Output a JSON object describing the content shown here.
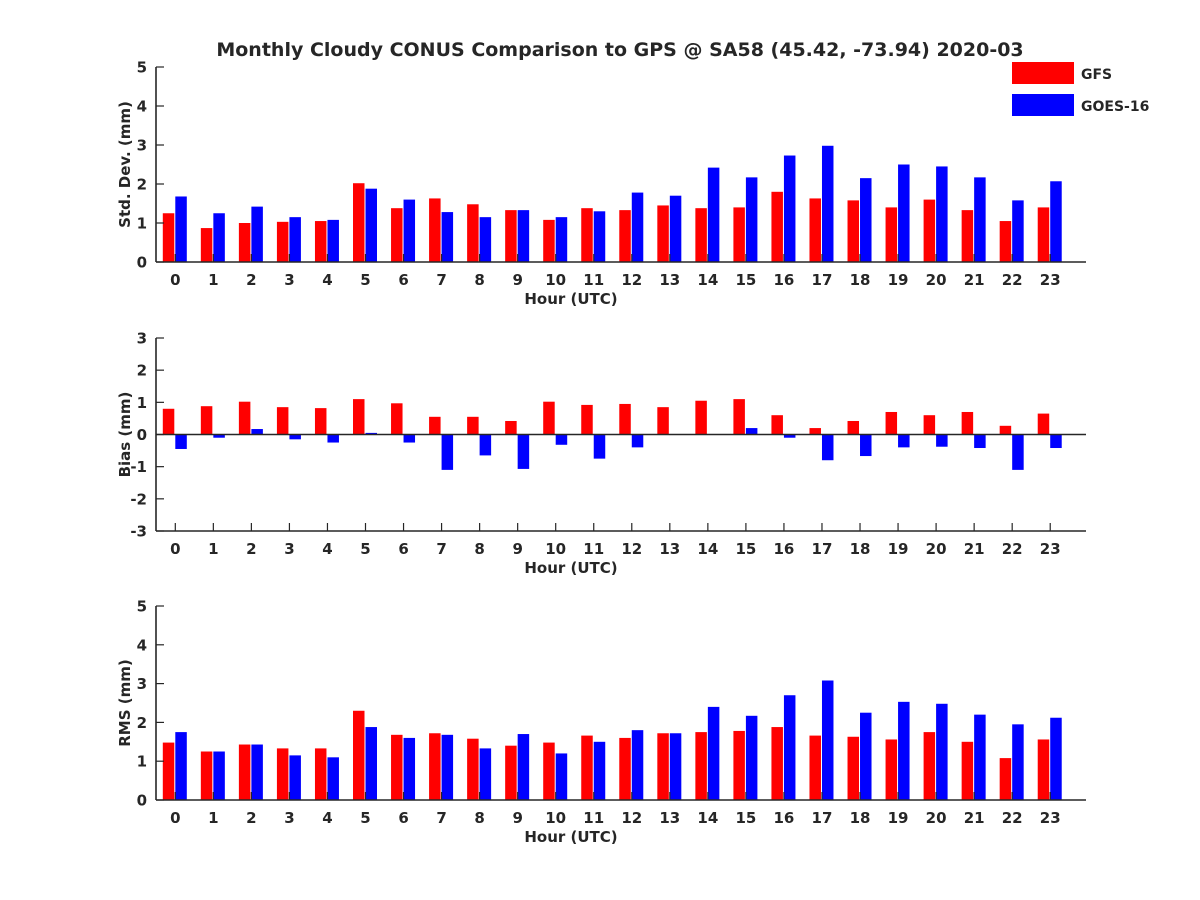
{
  "title": "Monthly Cloudy CONUS Comparison to GPS @ SA58 (45.42, -73.94) 2020-03",
  "colors": {
    "GFS": "#ff0000",
    "GOES-16": "#0000ff",
    "axis": "#262626"
  },
  "legend": [
    {
      "name": "GFS",
      "color": "#ff0000"
    },
    {
      "name": "GOES-16",
      "color": "#0000ff"
    }
  ],
  "chart_data": [
    {
      "type": "bar",
      "title": "Monthly Cloudy CONUS Comparison to GPS @ SA58 (45.42, -73.94) 2020-03",
      "xlabel": "Hour (UTC)",
      "ylabel": "Std. Dev. (mm)",
      "ylim": [
        0,
        5
      ],
      "yticks": [
        0,
        1,
        2,
        3,
        4,
        5
      ],
      "categories": [
        "0",
        "1",
        "2",
        "3",
        "4",
        "5",
        "6",
        "7",
        "8",
        "9",
        "10",
        "11",
        "12",
        "13",
        "14",
        "15",
        "16",
        "17",
        "18",
        "19",
        "20",
        "21",
        "22",
        "23"
      ],
      "series": [
        {
          "name": "GFS",
          "values": [
            1.25,
            0.87,
            1.0,
            1.03,
            1.05,
            2.02,
            1.38,
            1.63,
            1.48,
            1.33,
            1.08,
            1.38,
            1.33,
            1.45,
            1.38,
            1.4,
            1.8,
            1.63,
            1.58,
            1.4,
            1.6,
            1.33,
            1.05,
            1.4
          ]
        },
        {
          "name": "GOES-16",
          "values": [
            1.68,
            1.25,
            1.42,
            1.15,
            1.08,
            1.88,
            1.6,
            1.28,
            1.15,
            1.33,
            1.15,
            1.3,
            1.78,
            1.7,
            2.42,
            2.17,
            2.73,
            2.98,
            2.15,
            2.5,
            2.45,
            2.17,
            1.58,
            2.07
          ]
        }
      ],
      "legend": "top-right"
    },
    {
      "type": "bar",
      "xlabel": "Hour (UTC)",
      "ylabel": "Bias (mm)",
      "ylim": [
        -3,
        3
      ],
      "yticks": [
        -3,
        -2,
        -1,
        0,
        1,
        2,
        3
      ],
      "categories": [
        "0",
        "1",
        "2",
        "3",
        "4",
        "5",
        "6",
        "7",
        "8",
        "9",
        "10",
        "11",
        "12",
        "13",
        "14",
        "15",
        "16",
        "17",
        "18",
        "19",
        "20",
        "21",
        "22",
        "23"
      ],
      "series": [
        {
          "name": "GFS",
          "values": [
            0.8,
            0.88,
            1.02,
            0.85,
            0.82,
            1.1,
            0.97,
            0.55,
            0.55,
            0.42,
            1.02,
            0.92,
            0.95,
            0.85,
            1.05,
            1.1,
            0.6,
            0.2,
            0.42,
            0.7,
            0.6,
            0.7,
            0.27,
            0.65
          ]
        },
        {
          "name": "GOES-16",
          "values": [
            -0.45,
            -0.1,
            0.17,
            -0.15,
            -0.25,
            0.05,
            -0.25,
            -1.1,
            -0.65,
            -1.07,
            -0.32,
            -0.75,
            -0.4,
            0.0,
            0.0,
            0.2,
            -0.1,
            -0.8,
            -0.67,
            -0.4,
            -0.38,
            -0.42,
            -1.1,
            -0.42
          ]
        }
      ]
    },
    {
      "type": "bar",
      "xlabel": "Hour (UTC)",
      "ylabel": "RMS (mm)",
      "ylim": [
        0,
        5
      ],
      "yticks": [
        0,
        1,
        2,
        3,
        4,
        5
      ],
      "categories": [
        "0",
        "1",
        "2",
        "3",
        "4",
        "5",
        "6",
        "7",
        "8",
        "9",
        "10",
        "11",
        "12",
        "13",
        "14",
        "15",
        "16",
        "17",
        "18",
        "19",
        "20",
        "21",
        "22",
        "23"
      ],
      "series": [
        {
          "name": "GFS",
          "values": [
            1.48,
            1.25,
            1.43,
            1.33,
            1.33,
            2.3,
            1.68,
            1.72,
            1.58,
            1.4,
            1.48,
            1.66,
            1.6,
            1.72,
            1.75,
            1.78,
            1.88,
            1.66,
            1.63,
            1.56,
            1.75,
            1.5,
            1.08,
            1.56
          ]
        },
        {
          "name": "GOES-16",
          "values": [
            1.75,
            1.25,
            1.43,
            1.15,
            1.1,
            1.88,
            1.6,
            1.68,
            1.33,
            1.7,
            1.2,
            1.5,
            1.8,
            1.72,
            2.4,
            2.17,
            2.7,
            3.08,
            2.25,
            2.53,
            2.48,
            2.2,
            1.95,
            2.12
          ]
        }
      ]
    }
  ]
}
